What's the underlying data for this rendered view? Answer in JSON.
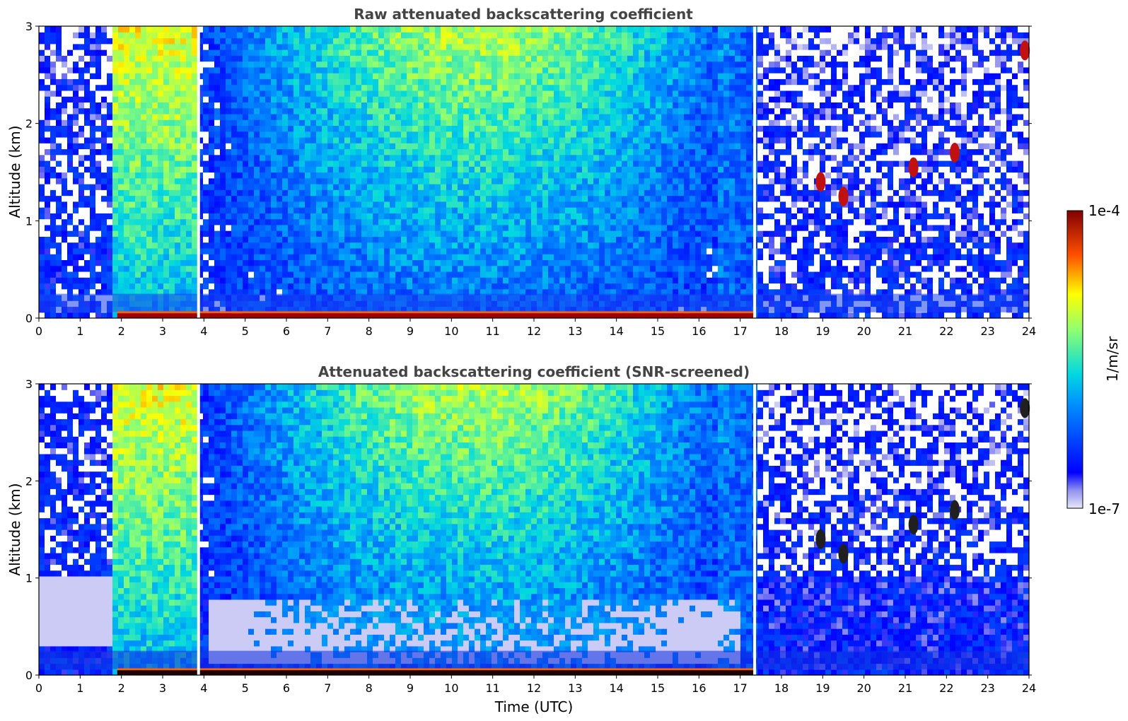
{
  "chart_data": [
    {
      "type": "heatmap",
      "title": "Raw attenuated backscattering coefficient",
      "ylabel": "Altitude (km)",
      "xlabel": "",
      "xlim": [
        0,
        24
      ],
      "ylim": [
        0,
        3
      ],
      "xticks": [
        "0",
        "1",
        "2",
        "3",
        "4",
        "5",
        "6",
        "7",
        "8",
        "9",
        "10",
        "11",
        "12",
        "13",
        "14",
        "15",
        "16",
        "17",
        "18",
        "19",
        "20",
        "21",
        "22",
        "23",
        "24"
      ],
      "yticks": [
        "0",
        "1",
        "2",
        "3"
      ],
      "data_gaps_utc": [
        3.87,
        17.35
      ],
      "surface_layer_km": 0.05,
      "cloud_features": [
        {
          "time_utc": 18.95,
          "altitude_km": 1.4
        },
        {
          "time_utc": 19.5,
          "altitude_km": 1.25
        },
        {
          "time_utc": 21.2,
          "altitude_km": 1.55
        },
        {
          "time_utc": 22.2,
          "altitude_km": 1.7
        },
        {
          "time_utc": 23.9,
          "altitude_km": 2.75
        }
      ]
    },
    {
      "type": "heatmap",
      "title": "Attenuated backscattering coefficient (SNR-screened)",
      "ylabel": "Altitude (km)",
      "xlabel": "Time (UTC)",
      "xlim": [
        0,
        24
      ],
      "ylim": [
        0,
        3
      ],
      "xticks": [
        "0",
        "1",
        "2",
        "3",
        "4",
        "5",
        "6",
        "7",
        "8",
        "9",
        "10",
        "11",
        "12",
        "13",
        "14",
        "15",
        "16",
        "17",
        "18",
        "19",
        "20",
        "21",
        "22",
        "23",
        "24"
      ],
      "yticks": [
        "0",
        "1",
        "2",
        "3"
      ],
      "data_gaps_utc": [
        3.87,
        17.35
      ],
      "surface_layer_km": 0.05,
      "cloud_features": [
        {
          "time_utc": 18.95,
          "altitude_km": 1.4
        },
        {
          "time_utc": 19.5,
          "altitude_km": 1.25
        },
        {
          "time_utc": 21.2,
          "altitude_km": 1.55
        },
        {
          "time_utc": 22.2,
          "altitude_km": 1.7
        },
        {
          "time_utc": 23.9,
          "altitude_km": 2.75
        }
      ]
    }
  ],
  "colorbar": {
    "label": "1/m/sr",
    "max_label": "1e-4",
    "min_label": "1e-7",
    "colormap": [
      "#e8e8f8",
      "#0000ff",
      "#00c8ff",
      "#80ff80",
      "#ffff00",
      "#ff6000",
      "#800000"
    ]
  }
}
